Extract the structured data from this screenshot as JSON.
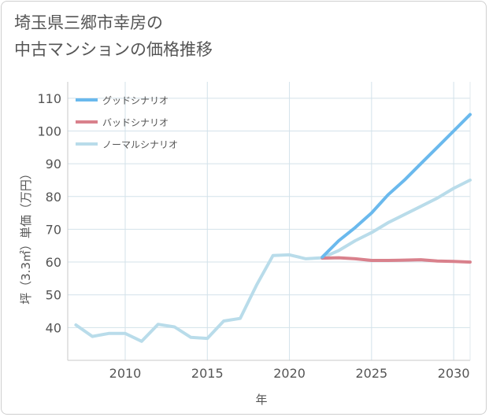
{
  "title_line1": "埼玉県三郷市幸房の",
  "title_line2": "中古マンションの価格推移",
  "chart_data": {
    "type": "line",
    "title": "埼玉県三郷市幸房の中古マンションの価格推移",
    "xlabel": "年",
    "ylabel": "坪（3.3㎡）単価（万円）",
    "xlim": [
      2006.5,
      2031
    ],
    "ylim": [
      30,
      115
    ],
    "xticks": [
      2010,
      2015,
      2020,
      2025,
      2030
    ],
    "yticks": [
      40,
      50,
      60,
      70,
      80,
      90,
      100,
      110
    ],
    "grid": true,
    "legend_position": "top-left",
    "series": [
      {
        "name": "グッドシナリオ",
        "color": "#6ab9ed",
        "points": [
          [
            2022,
            61.5
          ],
          [
            2023,
            66.5
          ],
          [
            2024,
            70.5
          ],
          [
            2025,
            75
          ],
          [
            2026,
            80.5
          ],
          [
            2027,
            85
          ],
          [
            2028,
            90
          ],
          [
            2029,
            95
          ],
          [
            2030,
            100
          ],
          [
            2031,
            105
          ]
        ]
      },
      {
        "name": "バッドシナリオ",
        "color": "#d9818c",
        "points": [
          [
            2022,
            61.2
          ],
          [
            2023,
            61.3
          ],
          [
            2024,
            61
          ],
          [
            2025,
            60.5
          ],
          [
            2026,
            60.5
          ],
          [
            2027,
            60.6
          ],
          [
            2028,
            60.7
          ],
          [
            2029,
            60.3
          ],
          [
            2030,
            60.2
          ],
          [
            2031,
            60
          ]
        ]
      },
      {
        "name": "ノーマルシナリオ",
        "color": "#b9dcea",
        "points": [
          [
            2007,
            40.8
          ],
          [
            2008,
            37.3
          ],
          [
            2009,
            38.2
          ],
          [
            2010,
            38.2
          ],
          [
            2011,
            35.8
          ],
          [
            2012,
            41
          ],
          [
            2013,
            40.2
          ],
          [
            2014,
            37
          ],
          [
            2015,
            36.7
          ],
          [
            2016,
            42
          ],
          [
            2017,
            42.8
          ],
          [
            2018,
            53
          ],
          [
            2019,
            62
          ],
          [
            2020,
            62.2
          ],
          [
            2021,
            61
          ],
          [
            2022,
            61.3
          ],
          [
            2023,
            63.5
          ],
          [
            2024,
            66.5
          ],
          [
            2025,
            69
          ],
          [
            2026,
            72
          ],
          [
            2027,
            74.5
          ],
          [
            2028,
            77
          ],
          [
            2029,
            79.5
          ],
          [
            2030,
            82.5
          ],
          [
            2031,
            85
          ]
        ]
      }
    ]
  }
}
